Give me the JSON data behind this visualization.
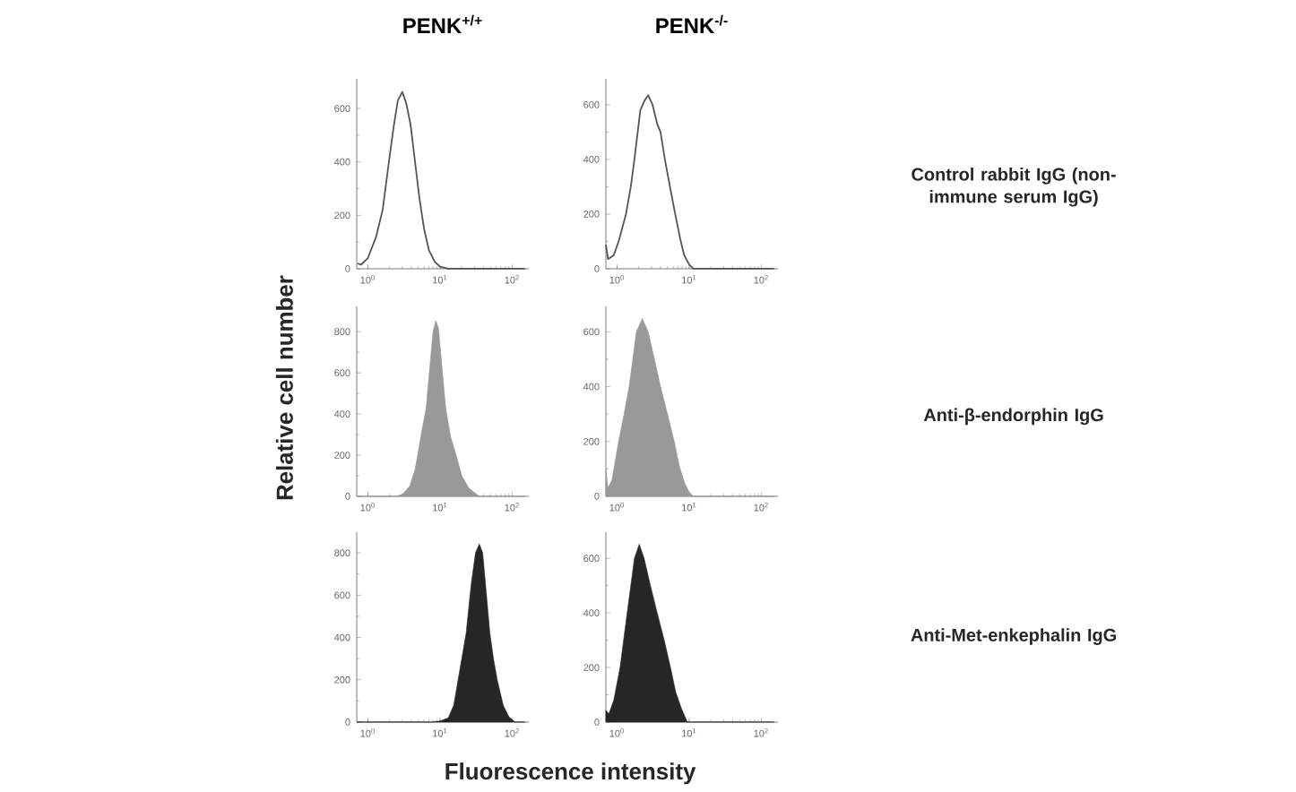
{
  "chart_data": [
    {
      "type": "line",
      "title": "PENK$^{+/+}$",
      "log": "x",
      "color": "#555555",
      "xlim": [
        0.7,
        170
      ],
      "ylim": [
        0,
        711
      ],
      "xticks": [
        {
          "value": 1,
          "label": "10$^{0}$"
        },
        {
          "value": 10,
          "label": "10$^{1}$"
        },
        {
          "value": 100,
          "label": "10$^{2}$"
        }
      ],
      "yticks": [
        0,
        200,
        400,
        600
      ],
      "x": [
        0.72,
        0.8,
        1.0,
        1.3,
        1.6,
        2.0,
        2.3,
        2.6,
        3.0,
        3.4,
        3.9,
        4.5,
        5.2,
        6.0,
        7.0,
        8.5,
        10,
        13,
        150
      ],
      "values": [
        20,
        15,
        40,
        120,
        220,
        420,
        540,
        630,
        662,
        620,
        540,
        400,
        260,
        150,
        70,
        25,
        8,
        0,
        0
      ]
    },
    {
      "type": "line",
      "title": "PENK$^{-/-}$",
      "log": "x",
      "color": "#555555",
      "xlim": [
        0.7,
        170
      ],
      "ylim": [
        0,
        695
      ],
      "annotations": [
        "Control rabbit IgG (non-immune serum IgG)"
      ],
      "xticks": [
        {
          "value": 1,
          "label": "10$^{0}$"
        },
        {
          "value": 10,
          "label": "10$^{1}$"
        },
        {
          "value": 100,
          "label": "10$^{2}$"
        }
      ],
      "yticks": [
        0,
        200,
        400,
        600
      ],
      "x": [
        0.7,
        0.75,
        0.9,
        1.05,
        1.33,
        1.55,
        1.74,
        2.1,
        2.4,
        2.7,
        3.1,
        3.6,
        4.0,
        4.6,
        5.5,
        6.4,
        7.5,
        8.5,
        10,
        11.5,
        150
      ],
      "values": [
        88,
        35,
        50,
        100,
        200,
        300,
        400,
        580,
        615,
        635,
        600,
        530,
        500,
        400,
        290,
        200,
        110,
        50,
        15,
        0,
        0
      ]
    },
    {
      "type": "area",
      "ylabel": "Relative cell number",
      "log": "x",
      "color": "#999999",
      "xlim": [
        0.7,
        170
      ],
      "ylim": [
        0,
        923
      ],
      "xticks": [
        {
          "value": 1,
          "label": "10$^{0}$"
        },
        {
          "value": 10,
          "label": "10$^{1}$"
        },
        {
          "value": 100,
          "label": "10$^{2}$"
        }
      ],
      "yticks": [
        0,
        200,
        400,
        600,
        800
      ],
      "x": [
        0.7,
        2.4,
        3.0,
        3.8,
        4.5,
        4.9,
        5.6,
        6.4,
        7.3,
        8.0,
        8.7,
        9.5,
        10.5,
        12,
        14,
        16.7,
        20,
        25,
        35,
        150
      ],
      "values": [
        0,
        0,
        10,
        50,
        130,
        200,
        320,
        426,
        650,
        800,
        853,
        820,
        650,
        426,
        290,
        200,
        100,
        40,
        0,
        0
      ]
    },
    {
      "type": "area",
      "log": "x",
      "color": "#999999",
      "xlim": [
        0.7,
        170
      ],
      "ylim": [
        0,
        693
      ],
      "annotations": [
        "Anti-β-endorphin IgG"
      ],
      "xticks": [
        {
          "value": 1,
          "label": "10$^{0}$"
        },
        {
          "value": 10,
          "label": "10$^{1}$"
        },
        {
          "value": 100,
          "label": "10$^{2}$"
        }
      ],
      "yticks": [
        0,
        200,
        400,
        600
      ],
      "x": [
        0.7,
        0.75,
        0.85,
        1.05,
        1.25,
        1.47,
        1.85,
        2.24,
        2.7,
        3.3,
        4.0,
        5.0,
        6.2,
        7.3,
        8.6,
        10,
        11.5,
        150
      ],
      "values": [
        93,
        30,
        60,
        200,
        300,
        400,
        600,
        649,
        600,
        500,
        400,
        300,
        200,
        110,
        50,
        15,
        0,
        0
      ]
    },
    {
      "type": "area",
      "xlabel": "Fluorescence intensity",
      "log": "x",
      "color": "#262626",
      "xlim": [
        0.7,
        170
      ],
      "ylim": [
        0,
        898
      ],
      "xticks": [
        {
          "value": 1,
          "label": "10$^{0}$"
        },
        {
          "value": 10,
          "label": "10$^{1}$"
        },
        {
          "value": 100,
          "label": "10$^{2}$"
        }
      ],
      "yticks": [
        0,
        200,
        400,
        600,
        800
      ],
      "x": [
        0.7,
        7.5,
        10,
        13,
        15.5,
        17.8,
        20,
        23,
        27,
        31,
        35,
        39,
        44,
        49,
        55,
        62,
        75,
        90,
        110,
        150
      ],
      "values": [
        0,
        0,
        5,
        20,
        80,
        200,
        300,
        421,
        650,
        800,
        842,
        800,
        600,
        421,
        300,
        200,
        80,
        25,
        0,
        0
      ]
    },
    {
      "type": "area",
      "log": "x",
      "color": "#262626",
      "xlim": [
        0.7,
        170
      ],
      "ylim": [
        0,
        696
      ],
      "annotations": [
        "Anti-Met-enkephalin IgG"
      ],
      "xticks": [
        {
          "value": 1,
          "label": "10$^{0}$"
        },
        {
          "value": 10,
          "label": "10$^{1}$"
        },
        {
          "value": 100,
          "label": "10$^{2}$"
        }
      ],
      "yticks": [
        0,
        200,
        400,
        600
      ],
      "x": [
        0.7,
        0.77,
        0.9,
        1.1,
        1.38,
        1.74,
        2.03,
        2.37,
        2.9,
        3.6,
        4.5,
        5.5,
        6.5,
        7.8,
        9.4,
        150
      ],
      "values": [
        43,
        30,
        80,
        200,
        400,
        600,
        652,
        600,
        500,
        400,
        300,
        200,
        110,
        50,
        0,
        0
      ]
    }
  ]
}
